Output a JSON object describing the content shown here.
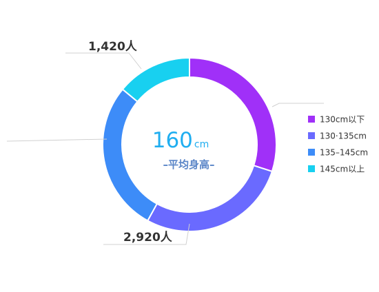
{
  "chart_data": {
    "type": "pie",
    "subtype": "donut",
    "title": "",
    "center": {
      "value": "160",
      "unit": "cm",
      "label": "–平均身高–"
    },
    "categories": [
      "130cm以下",
      "130·135cm",
      "135–145cm",
      "145cm以上"
    ],
    "values": [
      30,
      28,
      28,
      14
    ],
    "colors": [
      "#a030f8",
      "#6a6aff",
      "#3d8cf8",
      "#18d0f0"
    ],
    "callouts": [
      {
        "text": "1,420人",
        "segment": 3
      },
      {
        "text": "2,920人",
        "segment": 1
      }
    ],
    "legend_position": "right"
  }
}
